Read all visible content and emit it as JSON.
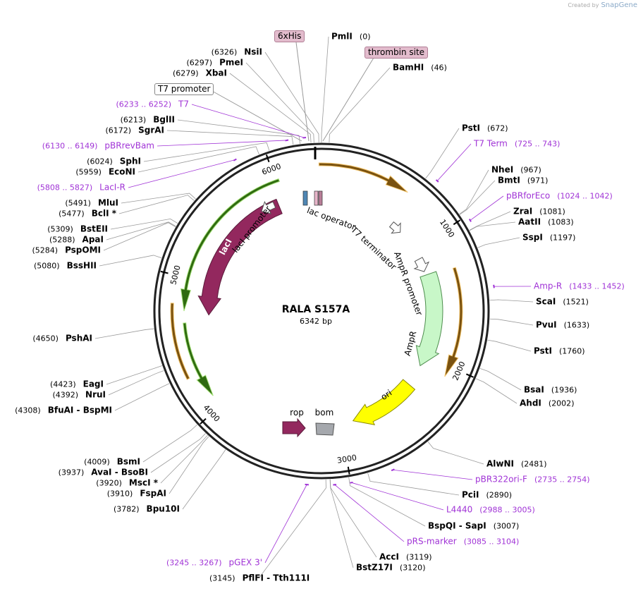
{
  "logo": {
    "prefix": "Created by",
    "name": "SnapGene"
  },
  "plasmid": {
    "name": "RALA S157A",
    "length": 6342,
    "unit": "bp"
  },
  "ruler": [
    1000,
    2000,
    3000,
    4000,
    5000,
    6000
  ],
  "sites": [
    {
      "name": "PmlI",
      "position": 0
    },
    {
      "name": "BamHI",
      "position": 46
    },
    {
      "name": "PstI",
      "position": 672
    },
    {
      "name": "NheI",
      "position": 967
    },
    {
      "name": "BmtI",
      "position": 971
    },
    {
      "name": "ZraI",
      "position": 1081
    },
    {
      "name": "AatII",
      "position": 1083
    },
    {
      "name": "SspI",
      "position": 1197
    },
    {
      "name": "ScaI",
      "position": 1521
    },
    {
      "name": "PvuI",
      "position": 1633
    },
    {
      "name": "PstI",
      "position": 1760
    },
    {
      "name": "BsaI",
      "position": 1936
    },
    {
      "name": "AhdI",
      "position": 2002
    },
    {
      "name": "AlwNI",
      "position": 2481
    },
    {
      "name": "PciI",
      "position": 2890
    },
    {
      "name": "BspQI - SapI",
      "position": 3007
    },
    {
      "name": "AccI",
      "position": 3119
    },
    {
      "name": "BstZ17I",
      "position": 3120
    },
    {
      "name": "PflFI - Tth111I",
      "position": 3145
    },
    {
      "name": "Bpu10I",
      "position": 3782
    },
    {
      "name": "FspAI",
      "position": 3910
    },
    {
      "name": "MscI *",
      "position": 3920
    },
    {
      "name": "AvaI - BsoBI",
      "position": 3937
    },
    {
      "name": "BsmI",
      "position": 4009
    },
    {
      "name": "BfuAI - BspMI",
      "position": 4308
    },
    {
      "name": "NruI",
      "position": 4392
    },
    {
      "name": "EagI",
      "position": 4423
    },
    {
      "name": "PshAI",
      "position": 4650
    },
    {
      "name": "BssHII",
      "position": 5080
    },
    {
      "name": "PspOMI",
      "position": 5284
    },
    {
      "name": "ApaI",
      "position": 5288
    },
    {
      "name": "BstEII",
      "position": 5309
    },
    {
      "name": "BclI *",
      "position": 5477
    },
    {
      "name": "MluI",
      "position": 5491
    },
    {
      "name": "EcoNI",
      "position": 5959
    },
    {
      "name": "SphI",
      "position": 6024
    },
    {
      "name": "SgrAI",
      "position": 6172
    },
    {
      "name": "BglII",
      "position": 6213
    },
    {
      "name": "XbaI",
      "position": 6279
    },
    {
      "name": "PmeI",
      "position": 6297
    },
    {
      "name": "NsiI",
      "position": 6326
    }
  ],
  "primers": [
    {
      "name": "T7",
      "start": 6233,
      "end": 6252
    },
    {
      "name": "pBRrevBam",
      "start": 6130,
      "end": 6149
    },
    {
      "name": "LacI-R",
      "start": 5808,
      "end": 5827
    },
    {
      "name": "T7 Term",
      "start": 725,
      "end": 743
    },
    {
      "name": "pBRforEco",
      "start": 1024,
      "end": 1042
    },
    {
      "name": "Amp-R",
      "start": 1433,
      "end": 1452
    },
    {
      "name": "pBR322ori-F",
      "start": 2735,
      "end": 2754
    },
    {
      "name": "L4440",
      "start": 2988,
      "end": 3005
    },
    {
      "name": "pRS-marker",
      "start": 3085,
      "end": 3104
    },
    {
      "name": "pGEX 3'",
      "start": 3245,
      "end": 3267
    }
  ],
  "boxed_features": [
    "6xHis",
    "thrombin site",
    "T7 promoter"
  ],
  "features": [
    "lac operator",
    "lacI promoter",
    "lacI",
    "T7 terminator",
    "AmpR promoter",
    "AmpR",
    "ori",
    "rop",
    "bom"
  ]
}
